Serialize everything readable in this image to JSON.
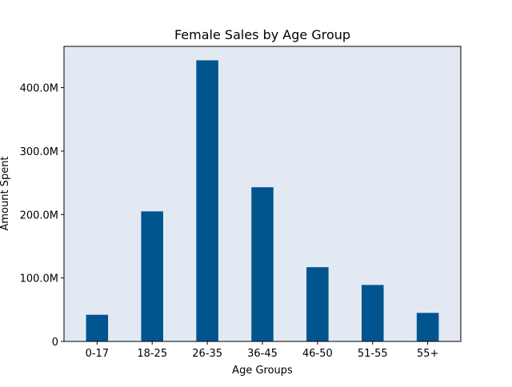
{
  "chart_data": {
    "type": "bar",
    "title": "Female Sales by Age Group",
    "xlabel": "Age Groups",
    "ylabel": "Amount Spent",
    "categories": [
      "0-17",
      "18-25",
      "26-35",
      "36-45",
      "46-50",
      "51-55",
      "55+"
    ],
    "values": [
      42000000,
      205000000,
      443000000,
      243000000,
      117000000,
      89000000,
      45000000
    ],
    "yticks": [
      {
        "value": 0,
        "label": "0"
      },
      {
        "value": 100000000,
        "label": "100.0M"
      },
      {
        "value": 200000000,
        "label": "200.0M"
      },
      {
        "value": 300000000,
        "label": "300.0M"
      },
      {
        "value": 400000000,
        "label": "400.0M"
      }
    ],
    "ylim": [
      0,
      465000000
    ],
    "grid": false,
    "colors": {
      "bar": "#00558f",
      "plot_background": "#e3e9f2",
      "figure_background": "#ffffff"
    }
  }
}
